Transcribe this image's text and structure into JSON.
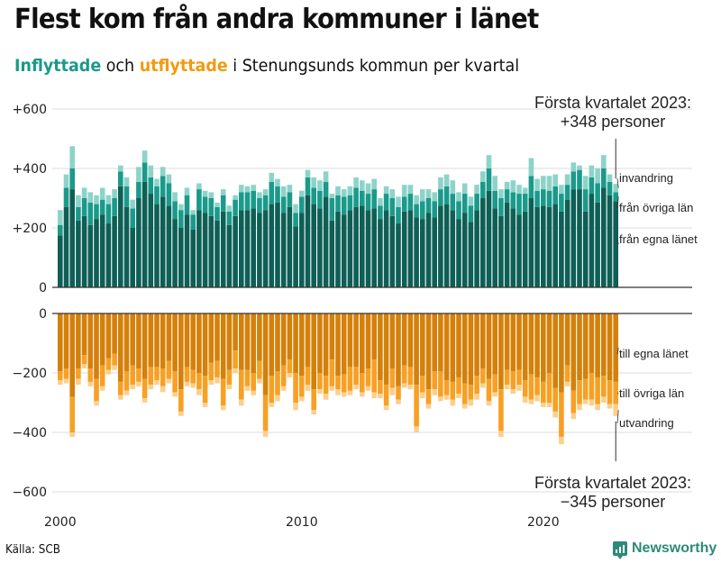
{
  "title": "Flest kom från andra kommuner i länet",
  "subtitle": {
    "inflow_word": "Inflyttade",
    "and": " och ",
    "outflow_word": "utflyttade",
    "rest": " i Stenungsunds  kommun per kvartal"
  },
  "source": "Källa: SCB",
  "logo": {
    "text": "Newsworthy",
    "icon": "bar-chart-bubble-icon"
  },
  "colors": {
    "in_egna": "#0e5f55",
    "in_ovriga": "#1a9a8a",
    "in_invandring": "#8dd3c9",
    "out_egna": "#d4800a",
    "out_ovriga": "#f7a024",
    "out_utvandring": "#fbd08c",
    "grid": "#dddddd",
    "axis": "#333333"
  },
  "chart_data": [
    {
      "type": "bar",
      "stacked": true,
      "title": "Inflyttade",
      "annotation": [
        "Första kvartalet 2023:",
        "+348 personer"
      ],
      "ylim": [
        0,
        600
      ],
      "yticks": [
        0,
        200,
        400,
        600
      ],
      "ytick_labels": [
        "0",
        "+200",
        "+400",
        "+600"
      ],
      "grid": true,
      "segment_labels": [
        "från egna länet",
        "från övriga län",
        "invandring"
      ],
      "start": {
        "year": 2000,
        "quarter": 1
      },
      "series": [
        {
          "name": "från egna länet",
          "values": [
            175,
            270,
            330,
            225,
            240,
            210,
            230,
            245,
            215,
            240,
            340,
            270,
            200,
            300,
            355,
            315,
            280,
            305,
            275,
            230,
            200,
            245,
            195,
            260,
            250,
            240,
            225,
            255,
            210,
            240,
            260,
            260,
            265,
            250,
            260,
            280,
            285,
            250,
            270,
            205,
            250,
            310,
            280,
            265,
            305,
            225,
            255,
            245,
            260,
            270,
            275,
            260,
            265,
            230,
            260,
            240,
            215,
            255,
            260,
            235,
            230,
            250,
            235,
            275,
            280,
            260,
            230,
            250,
            220,
            260,
            300,
            325,
            265,
            240,
            285,
            265,
            245,
            255,
            300,
            270,
            275,
            270,
            280,
            255,
            295,
            330,
            330,
            255,
            315,
            285,
            335,
            310,
            290
          ]
        },
        {
          "name": "från övriga län",
          "values": [
            35,
            65,
            70,
            45,
            60,
            75,
            50,
            50,
            65,
            60,
            50,
            70,
            65,
            55,
            65,
            55,
            60,
            70,
            75,
            60,
            60,
            65,
            50,
            70,
            55,
            60,
            45,
            55,
            45,
            55,
            60,
            60,
            60,
            50,
            50,
            75,
            55,
            55,
            50,
            45,
            55,
            60,
            55,
            60,
            50,
            75,
            55,
            60,
            50,
            65,
            50,
            55,
            65,
            45,
            55,
            60,
            55,
            50,
            55,
            45,
            60,
            50,
            55,
            55,
            60,
            55,
            60,
            65,
            55,
            55,
            55,
            75,
            60,
            60,
            45,
            55,
            70,
            60,
            75,
            55,
            55,
            55,
            60,
            60,
            50,
            60,
            65,
            75,
            55,
            65,
            65,
            45,
            30
          ]
        },
        {
          "name": "invandring",
          "values": [
            50,
            45,
            75,
            40,
            35,
            35,
            30,
            40,
            30,
            30,
            20,
            30,
            30,
            50,
            40,
            40,
            25,
            30,
            30,
            30,
            20,
            25,
            15,
            20,
            20,
            20,
            15,
            20,
            20,
            15,
            25,
            20,
            20,
            20,
            20,
            30,
            25,
            35,
            25,
            30,
            20,
            25,
            35,
            35,
            35,
            15,
            30,
            25,
            30,
            35,
            35,
            35,
            35,
            25,
            25,
            30,
            35,
            40,
            30,
            30,
            40,
            30,
            30,
            40,
            40,
            45,
            30,
            35,
            30,
            30,
            35,
            45,
            50,
            30,
            25,
            40,
            30,
            20,
            60,
            40,
            45,
            50,
            40,
            30,
            35,
            30,
            15,
            45,
            40,
            50,
            45,
            25,
            28
          ]
        }
      ]
    },
    {
      "type": "bar",
      "stacked": true,
      "title": "Utflyttade",
      "annotation": [
        "Första kvartalet 2023:",
        "−345 personer"
      ],
      "ylim": [
        -600,
        0
      ],
      "yticks": [
        0,
        -200,
        -400,
        -600
      ],
      "ytick_labels": [
        "0",
        "−200",
        "−400",
        "−600"
      ],
      "grid": true,
      "segment_labels": [
        "till egna länet",
        "till övriga län",
        "utvandring"
      ],
      "series": [
        {
          "name": "till egna länet",
          "values": [
            -195,
            -185,
            -280,
            -185,
            -140,
            -185,
            -220,
            -175,
            -150,
            -135,
            -230,
            -195,
            -175,
            -185,
            -220,
            -180,
            -180,
            -185,
            -160,
            -195,
            -255,
            -180,
            -190,
            -200,
            -210,
            -165,
            -160,
            -220,
            -190,
            -125,
            -190,
            -190,
            -200,
            -160,
            -275,
            -210,
            -195,
            -175,
            -155,
            -200,
            -210,
            -180,
            -255,
            -200,
            -210,
            -155,
            -210,
            -205,
            -180,
            -180,
            -200,
            -185,
            -155,
            -225,
            -240,
            -185,
            -245,
            -175,
            -180,
            -240,
            -210,
            -255,
            -195,
            -195,
            -225,
            -230,
            -215,
            -235,
            -240,
            -210,
            -185,
            -220,
            -205,
            -255,
            -190,
            -195,
            -190,
            -225,
            -205,
            -215,
            -230,
            -200,
            -250,
            -265,
            -175,
            -260,
            -225,
            -220,
            -200,
            -215,
            -210,
            -225,
            -230
          ]
        },
        {
          "name": "till övriga län",
          "values": [
            -30,
            -35,
            -120,
            -35,
            -30,
            -45,
            -75,
            -70,
            -40,
            -40,
            -45,
            -65,
            -65,
            -45,
            -65,
            -60,
            -45,
            -60,
            -60,
            -70,
            -75,
            -50,
            -45,
            -55,
            -90,
            -60,
            -55,
            -90,
            -50,
            -60,
            -100,
            -55,
            -60,
            -60,
            -120,
            -90,
            -80,
            -70,
            -45,
            -100,
            -70,
            -60,
            -70,
            -55,
            -60,
            -90,
            -45,
            -60,
            -80,
            -60,
            -65,
            -60,
            -110,
            -45,
            -70,
            -65,
            -45,
            -60,
            -60,
            -140,
            -55,
            -50,
            -60,
            -85,
            -50,
            -60,
            -55,
            -70,
            -50,
            -60,
            -50,
            -75,
            -60,
            -140,
            -50,
            -60,
            -50,
            -55,
            -85,
            -60,
            -70,
            -100,
            -80,
            -150,
            -55,
            -75,
            -80,
            -70,
            -90,
            -90,
            -70,
            -80,
            -75
          ]
        },
        {
          "name": "utvandring",
          "values": [
            -15,
            -15,
            -15,
            -20,
            -15,
            -15,
            -15,
            -15,
            -15,
            -15,
            -15,
            -15,
            -15,
            -15,
            -15,
            -15,
            -15,
            -20,
            -15,
            -15,
            -15,
            -15,
            -15,
            -20,
            -15,
            -15,
            -20,
            -15,
            -15,
            -15,
            -20,
            -15,
            -15,
            -15,
            -20,
            -15,
            -20,
            -15,
            -15,
            -25,
            -15,
            -20,
            -15,
            -15,
            -20,
            -15,
            -20,
            -15,
            -15,
            -15,
            -15,
            -15,
            -20,
            -15,
            -15,
            -25,
            -15,
            -15,
            -15,
            -20,
            -20,
            -15,
            -20,
            -15,
            -15,
            -20,
            -15,
            -15,
            -20,
            -20,
            -15,
            -15,
            -15,
            -20,
            -15,
            -15,
            -20,
            -20,
            -15,
            -20,
            -15,
            -15,
            -20,
            -25,
            -15,
            -20,
            -20,
            -15,
            -20,
            -20,
            -20,
            -15,
            -40
          ]
        }
      ]
    }
  ],
  "x_axis": {
    "tick_labels": [
      "2000",
      "2010",
      "2020"
    ],
    "tick_years": [
      2000,
      2010,
      2020
    ]
  }
}
